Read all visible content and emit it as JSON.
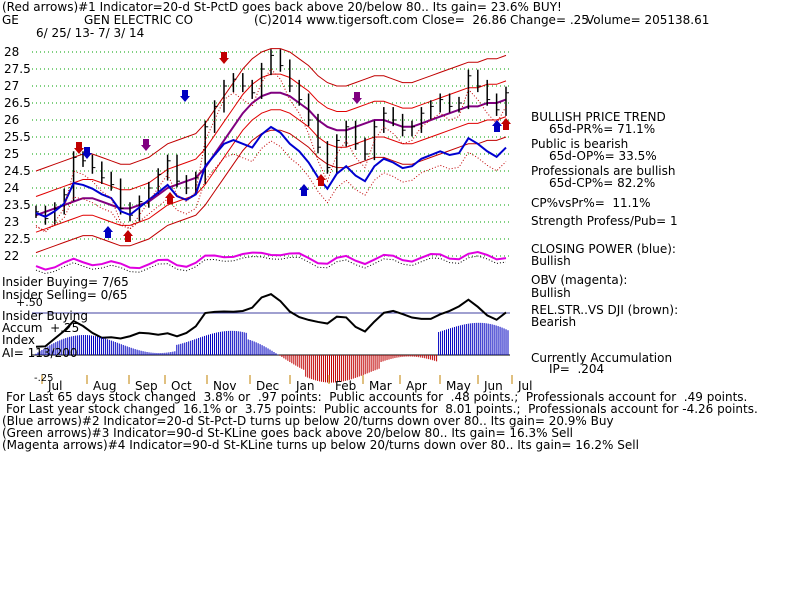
{
  "header": {
    "line1": "(Red arrows)#1 Indicator=20-d St-PctD goes back above 20/below 80.. Its gain= 23.6% BUY!",
    "ticker": "GE",
    "company": "GEN ELECTRIC CO",
    "copyright": "(C)2014 www.tigersoft.com",
    "close": "Close=  26.86",
    "change": "Change= .25",
    "volume": "Volume= 205138.61",
    "date_range": "6/ 25/ 13- 7/ 3/ 14"
  },
  "right_panel": {
    "trend": "BULLISH PRICE TREND",
    "pr": "65d-PR%= 71.1%",
    "public": "Public is bearish",
    "op": "65d-OP%= 33.5%",
    "prof": "Professionals are bullish",
    "cp": "65d-CP%= 82.2%",
    "cpvspr": "CP%vsPr%=  11.1%",
    "strength": "Strength Profess/Pub= 1",
    "closing_power": "CLOSING POWER (blue):",
    "closing_power_val": "Bullish",
    "obv": "OBV (magenta):",
    "obv_val": "Bullish",
    "relstr": "REL.STR..VS DJI (brown):",
    "relstr_val": "Bearish",
    "accum": "Currently Accumulation",
    "ip": "IP=  .204"
  },
  "left_panel": {
    "insider_buying": "Insider Buying= 7/65",
    "insider_selling": "Insider Selling= 0/65",
    "zero": "+.50",
    "insider_buying2": "Insider Buying",
    "accum": "Accum  +.25",
    "index": "Index",
    "ai": "AI= 113/200",
    "neg": "-.25"
  },
  "footer": {
    "line1": "For Last 65 days stock changed  3.8% or  .97 points:  Public accounts for  .48 points.;  Professionals account for  .49 points.",
    "line2": "For Last year stock changed  16.1% or  3.75 points:  Public accounts for  8.01 points.;  Professionals account for -4.26 points.",
    "line3": "(Blue arrows)#2 Indicator=20-d St-Pct-D turns up below 20/turns down over 80.. Its gain= 20.9% Buy",
    "line4": "(Green arrows)#3 Indicator=90-d St-KLine goes back above 20/below 80.. Its gain= 16.3% Sell",
    "line5": "(Magenta arrows)#4 Indicator=90-d St-KLine turns up below 20/turns down over 80.. Its gain= 16.2% Sell"
  },
  "chart_data": {
    "type": "line",
    "y_ticks": [
      "28",
      "27.5",
      "27",
      "26.5",
      "26",
      "25.5",
      "25",
      "24.5",
      "24",
      "23.5",
      "23",
      "22.5",
      "22"
    ],
    "x_ticks": [
      "Jul",
      "Aug",
      "Sep",
      "Oct",
      "Nov",
      "Dec",
      "Jan",
      "Feb",
      "Mar",
      "Apr",
      "May",
      "Jun",
      "Jul"
    ],
    "ylim": [
      22,
      28
    ],
    "price": [
      23.3,
      23.1,
      23.4,
      23.8,
      24.9,
      24.8,
      24.6,
      24.3,
      24.1,
      23.4,
      23.2,
      23.6,
      24.0,
      24.4,
      24.8,
      24.2,
      24.0,
      24.3,
      25.8,
      26.4,
      27.0,
      27.2,
      27.0,
      26.8,
      27.5,
      27.9,
      27.6,
      27.0,
      26.6,
      26.0,
      25.2,
      24.6,
      25.4,
      25.8,
      25.3,
      25.0,
      25.8,
      26.2,
      26.0,
      25.7,
      25.8,
      26.2,
      26.4,
      26.6,
      26.4,
      26.5,
      27.3,
      27.0,
      26.6,
      26.3,
      26.8
    ],
    "ma": [
      23.2,
      23.3,
      23.4,
      23.5,
      23.6,
      23.7,
      23.7,
      23.6,
      23.5,
      23.4,
      23.4,
      23.5,
      23.6,
      23.8,
      24.0,
      24.1,
      24.2,
      24.3,
      24.6,
      25.0,
      25.4,
      25.8,
      26.2,
      26.5,
      26.7,
      26.8,
      26.8,
      26.7,
      26.5,
      26.3,
      26.0,
      25.8,
      25.7,
      25.7,
      25.8,
      25.9,
      26.0,
      26.0,
      25.9,
      25.8,
      25.8,
      25.9,
      26.0,
      26.1,
      26.2,
      26.3,
      26.4,
      26.4,
      26.5,
      26.5,
      26.6
    ],
    "series": [
      {
        "name": "CLOSING POWER (blue)",
        "color": "#0000d0"
      },
      {
        "name": "OBV (magenta)",
        "color": "#e000e0"
      },
      {
        "name": "REL.STR..VS DJI (brown)",
        "color": "#8b0000"
      }
    ]
  }
}
